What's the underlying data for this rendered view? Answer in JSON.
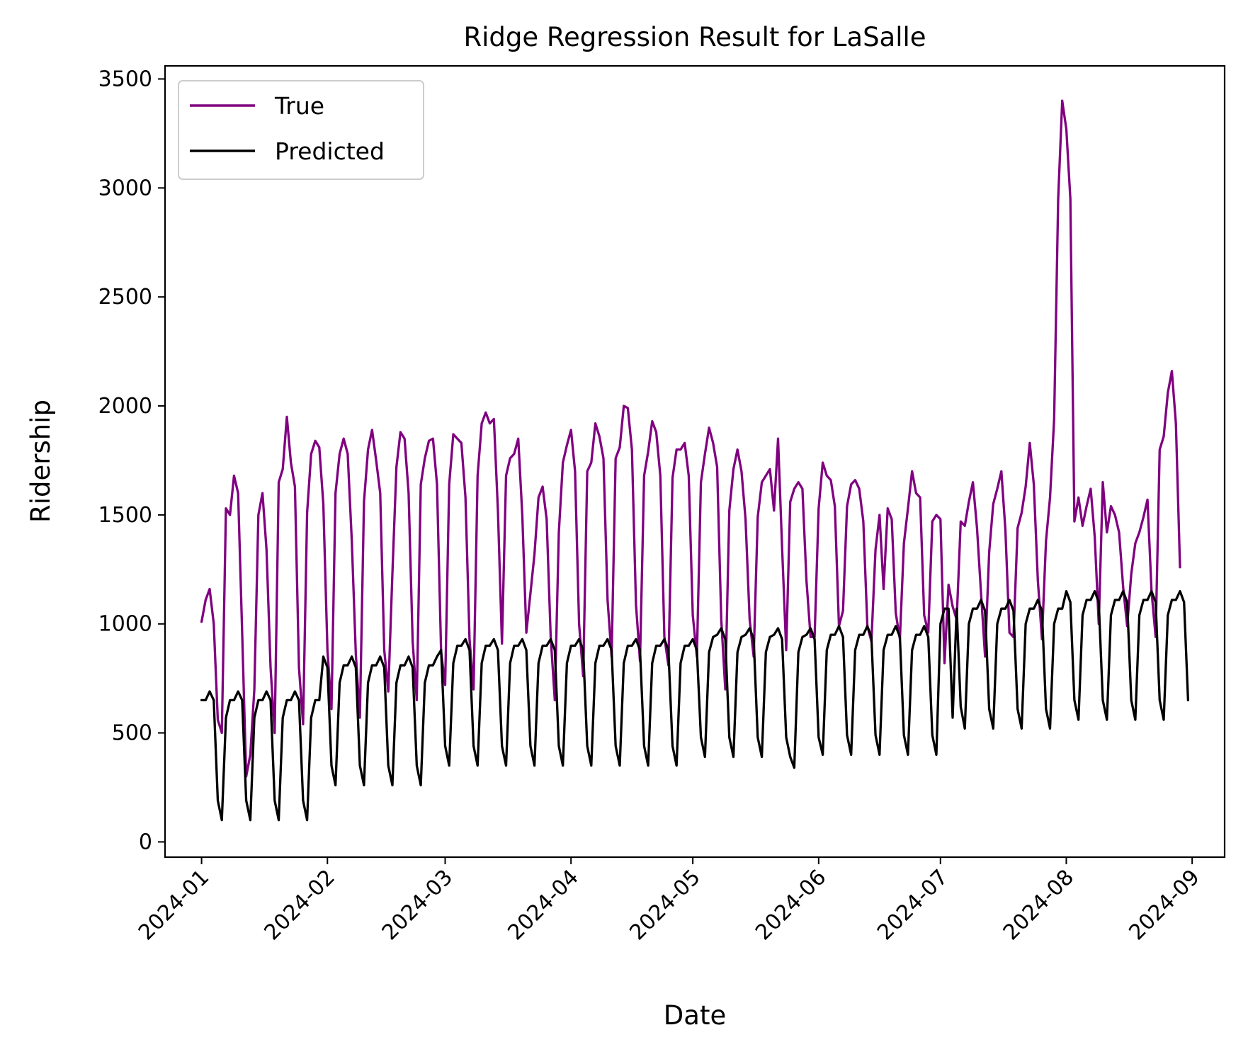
{
  "chart_data": {
    "type": "line",
    "title": "Ridge Regression Result for LaSalle",
    "xlabel": "Date",
    "ylabel": "Ridership",
    "x_start": "2024-01-01",
    "x_end": "2024-08-31",
    "xlim": [
      "2023-12-23",
      "2024-09-09"
    ],
    "ylim": [
      -70,
      3560
    ],
    "x_ticks": [
      "2024-01",
      "2024-02",
      "2024-03",
      "2024-04",
      "2024-05",
      "2024-06",
      "2024-07",
      "2024-08",
      "2024-09"
    ],
    "y_ticks": [
      "0",
      "500",
      "1000",
      "1500",
      "2000",
      "2500",
      "3000",
      "3500"
    ],
    "legend_position": "upper-left",
    "series": [
      {
        "name": "True",
        "color": "#800080",
        "values": [
          1010,
          1110,
          1160,
          1000,
          560,
          500,
          1530,
          1500,
          1680,
          1600,
          960,
          300,
          400,
          700,
          1500,
          1600,
          1340,
          800,
          500,
          1650,
          1710,
          1950,
          1740,
          1630,
          800,
          540,
          1510,
          1780,
          1840,
          1810,
          1550,
          880,
          610,
          1600,
          1780,
          1850,
          1780,
          1380,
          860,
          570,
          1560,
          1800,
          1890,
          1750,
          1600,
          880,
          690,
          1230,
          1720,
          1880,
          1850,
          1600,
          920,
          650,
          1640,
          1760,
          1840,
          1850,
          1640,
          870,
          720,
          1640,
          1870,
          1850,
          1830,
          1580,
          930,
          700,
          1680,
          1920,
          1970,
          1920,
          1940,
          1520,
          910,
          1680,
          1760,
          1780,
          1850,
          1500,
          960,
          1140,
          1320,
          1580,
          1630,
          1480,
          940,
          650,
          1420,
          1740,
          1820,
          1890,
          1700,
          1000,
          760,
          1700,
          1740,
          1920,
          1860,
          1760,
          1110,
          850,
          1760,
          1810,
          2000,
          1990,
          1800,
          1090,
          830,
          1680,
          1790,
          1930,
          1880,
          1680,
          940,
          810,
          1670,
          1800,
          1800,
          1830,
          1680,
          1040,
          850,
          1650,
          1780,
          1900,
          1830,
          1720,
          1020,
          700,
          1520,
          1710,
          1800,
          1700,
          1480,
          1020,
          850,
          1490,
          1650,
          1680,
          1710,
          1520,
          1850,
          1350,
          880,
          1560,
          1620,
          1650,
          1620,
          1200,
          940,
          940,
          1530,
          1740,
          1680,
          1660,
          1540,
          990,
          1060,
          1540,
          1640,
          1660,
          1620,
          1470,
          990,
          920,
          1340,
          1500,
          1160,
          1530,
          1480,
          1050,
          930,
          1370,
          1530,
          1700,
          1600,
          1580,
          1040,
          960,
          1470,
          1500,
          1480,
          820,
          1180,
          1080,
          1020,
          1470,
          1450,
          1560,
          1650,
          1440,
          1140,
          850,
          1330,
          1550,
          1620,
          1700,
          1430,
          960,
          940,
          1440,
          1510,
          1630,
          1830,
          1640,
          1200,
          930,
          1380,
          1580,
          1940,
          2950,
          3400,
          3270,
          2950,
          1470,
          1580,
          1450,
          1540,
          1620,
          1400,
          1000,
          1650,
          1420,
          1540,
          1500,
          1420,
          1170,
          990,
          1230,
          1370,
          1420,
          1490,
          1570,
          1150,
          940,
          1800,
          1860,
          2060,
          2160,
          1920,
          1260
        ]
      },
      {
        "name": "Predicted",
        "color": "#000000",
        "values": [
          650,
          650,
          690,
          650,
          190,
          100,
          570,
          650,
          650,
          690,
          650,
          190,
          100,
          570,
          650,
          650,
          690,
          650,
          190,
          100,
          570,
          650,
          650,
          690,
          650,
          190,
          100,
          570,
          650,
          650,
          850,
          800,
          350,
          260,
          730,
          810,
          810,
          850,
          800,
          350,
          260,
          730,
          810,
          810,
          850,
          800,
          350,
          260,
          730,
          810,
          810,
          850,
          800,
          350,
          260,
          730,
          810,
          810,
          850,
          880,
          440,
          350,
          820,
          900,
          900,
          930,
          880,
          440,
          350,
          820,
          900,
          900,
          930,
          880,
          440,
          350,
          820,
          900,
          900,
          930,
          880,
          440,
          350,
          820,
          900,
          900,
          930,
          880,
          440,
          350,
          820,
          900,
          900,
          930,
          880,
          440,
          350,
          820,
          900,
          900,
          930,
          880,
          440,
          350,
          820,
          900,
          900,
          930,
          880,
          440,
          350,
          820,
          900,
          900,
          930,
          880,
          440,
          350,
          820,
          900,
          900,
          930,
          880,
          480,
          390,
          870,
          940,
          950,
          980,
          930,
          480,
          390,
          870,
          940,
          950,
          980,
          930,
          480,
          390,
          870,
          940,
          950,
          980,
          930,
          480,
          390,
          340,
          870,
          940,
          950,
          980,
          930,
          480,
          400,
          880,
          950,
          950,
          990,
          940,
          490,
          400,
          880,
          950,
          950,
          990,
          940,
          490,
          400,
          880,
          950,
          950,
          990,
          940,
          490,
          400,
          880,
          950,
          950,
          990,
          940,
          490,
          400,
          1000,
          1070,
          1070,
          570,
          1070,
          620,
          520,
          1000,
          1070,
          1070,
          1110,
          1060,
          610,
          520,
          1000,
          1070,
          1070,
          1110,
          1060,
          610,
          520,
          1000,
          1070,
          1070,
          1110,
          1060,
          610,
          520,
          1000,
          1070,
          1070,
          1150,
          1100,
          650,
          560,
          1040,
          1110,
          1110,
          1150,
          1100,
          650,
          560,
          1040,
          1110,
          1110,
          1150,
          1100,
          650,
          560,
          1040,
          1110,
          1110,
          1150,
          1100,
          650,
          560,
          1040,
          1110,
          1110,
          1150,
          1100,
          650
        ]
      }
    ]
  }
}
